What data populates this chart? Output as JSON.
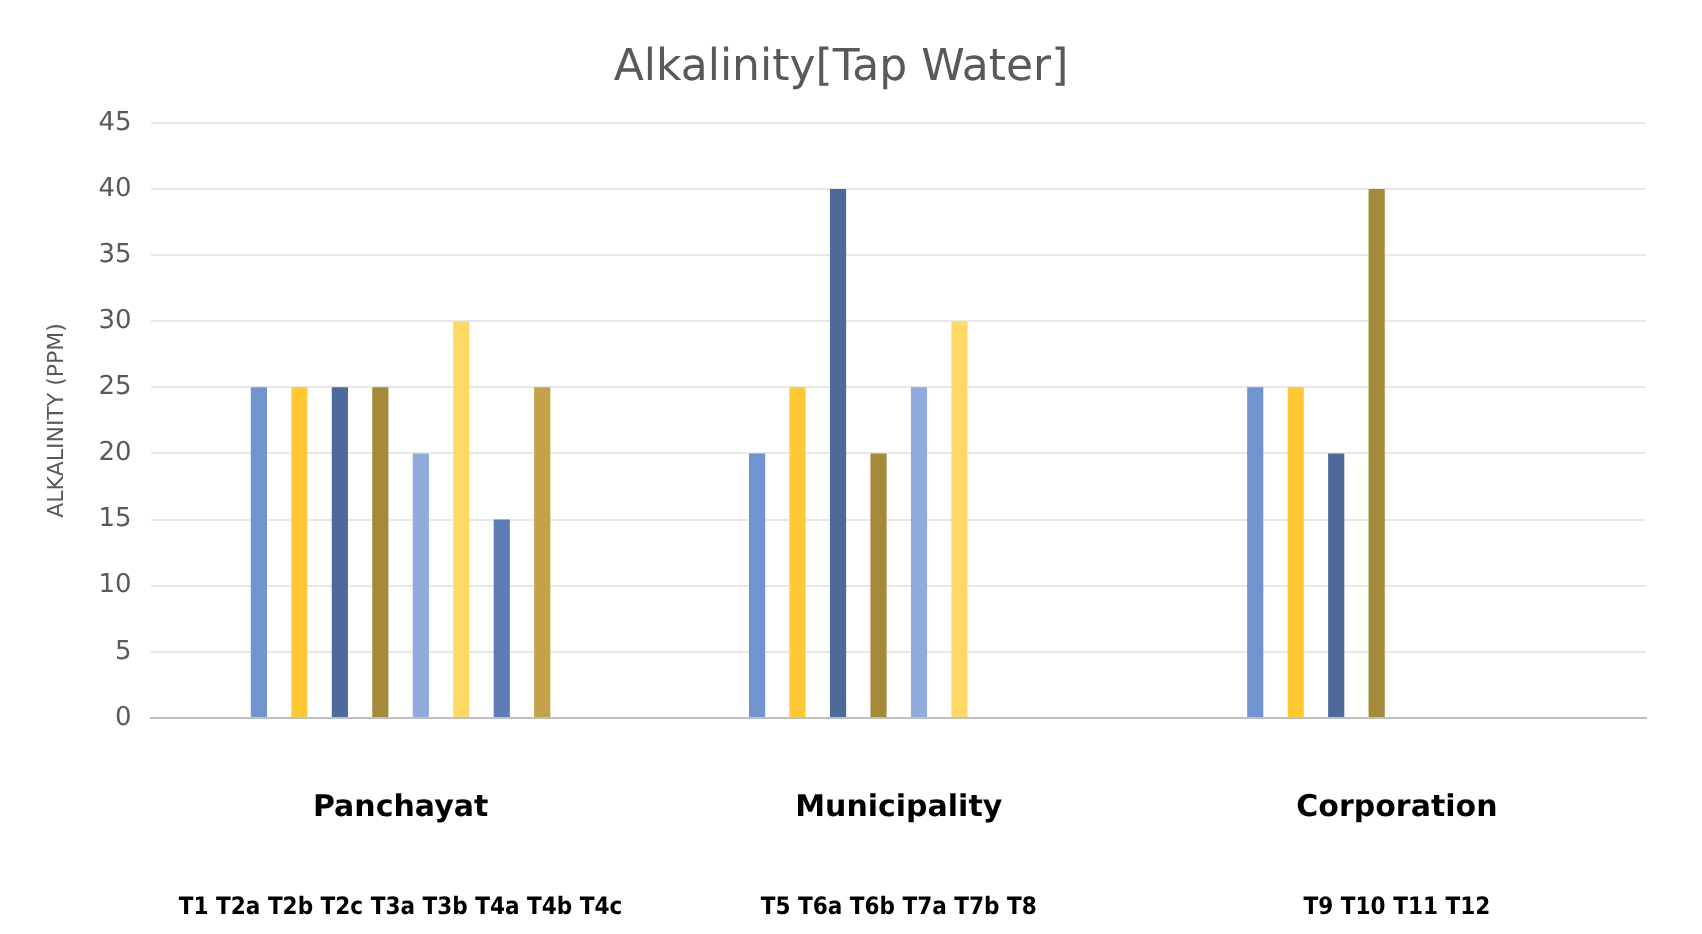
{
  "chart_data": {
    "type": "bar",
    "title": "Alkalinity[Tap Water]",
    "ylabel": "ALKALINITY (PPM)",
    "categories": [
      "Panchayat",
      "Municipality",
      "Corporation"
    ],
    "series": [
      {
        "color": "#7094d0",
        "values": [
          25,
          20,
          25
        ]
      },
      {
        "color": "#ffc935",
        "values": [
          25,
          25,
          25
        ]
      },
      {
        "color": "#4d6a9a",
        "values": [
          25,
          40,
          20
        ]
      },
      {
        "color": "#a58a3a",
        "values": [
          25,
          20,
          40
        ]
      },
      {
        "color": "#91abdc",
        "values": [
          20,
          25,
          null
        ]
      },
      {
        "color": "#ffd865",
        "values": [
          30,
          30,
          null
        ]
      },
      {
        "color": "#5e7cb8",
        "values": [
          15,
          null,
          null
        ]
      },
      {
        "color": "#c4a348",
        "values": [
          25,
          null,
          null
        ]
      }
    ],
    "annotations": [
      "T1 T2a T2b T2c T3a T3b T4a T4b T4c",
      "T5 T6a T6b T7a T7b T8",
      "T9 T10 T11 T12"
    ],
    "ylim": [
      0,
      45
    ],
    "yticks": [
      0,
      5,
      10,
      15,
      20,
      25,
      30,
      35,
      40,
      45
    ],
    "grid": "y",
    "legend": false
  }
}
